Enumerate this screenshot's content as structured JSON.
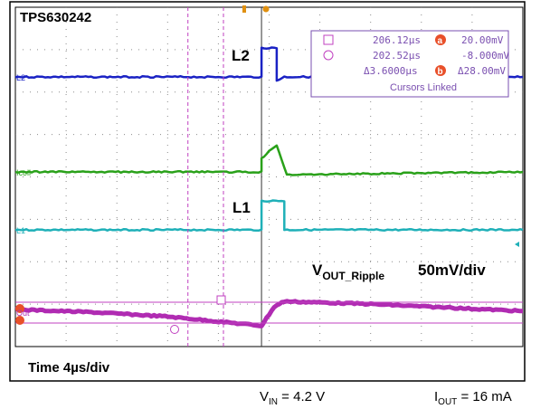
{
  "title": "TPS630242",
  "time_label": "Time 4µs/div",
  "vin_label": {
    "main": "V",
    "sub": "IN",
    "rest": " = 4.2 V"
  },
  "iout_label": {
    "main": "I",
    "sub": "OUT",
    "rest": " = 16 mA"
  },
  "colors": {
    "l2": "#1a22c4",
    "icoil": "#2aa11a",
    "l1": "#1fb0b8",
    "vout": "#b02bb2",
    "grid": "#8a8a8a",
    "cursor": "#c040c0",
    "cursor_badge": "#e8502a"
  },
  "cursor_box": {
    "row1": {
      "time": "206.12µs",
      "badge": "a",
      "value": "20.00mV"
    },
    "row2": {
      "time": "202.52µs",
      "value": "-8.000mV"
    },
    "row3": {
      "time": "Δ3.6000µs",
      "badge": "b",
      "value": "Δ28.00mV"
    },
    "footer": "Cursors Linked"
  },
  "chart_data": {
    "type": "line",
    "title": "TPS630242",
    "xlabel": "Time 4µs/div",
    "time_per_div_us": 4,
    "x_divisions": 10,
    "y_divisions": 8,
    "trigger_position_div": 4.85,
    "series": [
      {
        "name": "L2",
        "marker": "L2",
        "points": [
          [
            0,
            0
          ],
          [
            4.85,
            0
          ],
          [
            4.85,
            0.4
          ],
          [
            5.15,
            0.4
          ],
          [
            5.15,
            -0.05
          ],
          [
            5.3,
            0
          ],
          [
            10,
            0
          ]
        ]
      },
      {
        "name": "Icoil",
        "marker": "Icoil",
        "points": [
          [
            0,
            0
          ],
          [
            4.85,
            0
          ],
          [
            4.85,
            0.25
          ],
          [
            5.15,
            0.5
          ],
          [
            5.35,
            -0.05
          ],
          [
            10,
            0
          ]
        ]
      },
      {
        "name": "L1",
        "marker": "L1",
        "points": [
          [
            0,
            0
          ],
          [
            4.85,
            0
          ],
          [
            4.85,
            0.4
          ],
          [
            5.3,
            0.4
          ],
          [
            5.3,
            0
          ],
          [
            10,
            0
          ]
        ]
      },
      {
        "name": "VOUT_Ripple",
        "marker": "Out",
        "scale": "50mV/div",
        "points": [
          [
            0,
            0.05
          ],
          [
            1.5,
            0
          ],
          [
            3,
            -0.08
          ],
          [
            4.85,
            -0.25
          ],
          [
            5.1,
            0.1
          ],
          [
            5.3,
            0.2
          ],
          [
            7,
            0.15
          ],
          [
            10,
            0.02
          ]
        ]
      }
    ],
    "annotations": [
      {
        "text": "L2",
        "at_series": "L2"
      },
      {
        "text": "L1",
        "at_series": "L1"
      },
      {
        "text": "V",
        "sub": "OUT_Ripple"
      },
      {
        "text": "50mV/div"
      }
    ]
  }
}
